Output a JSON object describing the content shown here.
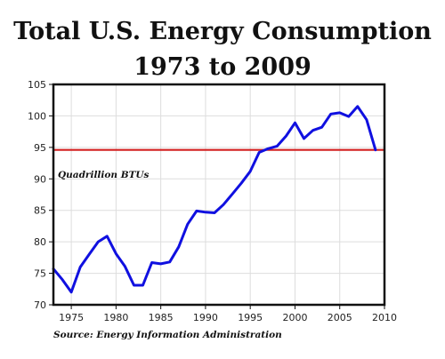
{
  "title_lines": [
    "Total U.S. Energy Consumption",
    "1973 to 2009"
  ],
  "chart_data": {
    "type": "line",
    "title": "Total U.S. Energy Consumption 1973 to 2009",
    "xlabel": "",
    "ylabel": "",
    "unit_annotation": "Quadrillion BTUs",
    "source": "Source: Energy Information Administration",
    "xlim": [
      1973,
      2010
    ],
    "ylim": [
      70,
      105
    ],
    "xticks": [
      1975,
      1980,
      1985,
      1990,
      1995,
      2000,
      2005,
      2010
    ],
    "yticks": [
      70,
      75,
      80,
      85,
      90,
      95,
      100,
      105
    ],
    "grid": true,
    "series": [
      {
        "color": "#1010e0",
        "x": [
          1973,
          1974,
          1975,
          1976,
          1977,
          1978,
          1979,
          1980,
          1981,
          1982,
          1983,
          1984,
          1985,
          1986,
          1987,
          1988,
          1989,
          1990,
          1991,
          1992,
          1993,
          1994,
          1995,
          1996,
          1997,
          1998,
          1999,
          2000,
          2001,
          2002,
          2003,
          2004,
          2005,
          2006,
          2007,
          2008,
          2009
        ],
        "y": [
          75.7,
          74.0,
          72.0,
          76.0,
          78.0,
          80.0,
          80.9,
          78.1,
          76.1,
          73.1,
          73.1,
          76.7,
          76.5,
          76.8,
          79.2,
          82.8,
          84.9,
          84.7,
          84.6,
          85.9,
          87.6,
          89.3,
          91.2,
          94.2,
          94.8,
          95.2,
          96.8,
          98.9,
          96.4,
          97.7,
          98.2,
          100.3,
          100.5,
          99.9,
          101.5,
          99.4,
          94.6
        ]
      }
    ],
    "reference_line": {
      "y": 94.6,
      "color": "#d42020"
    }
  }
}
